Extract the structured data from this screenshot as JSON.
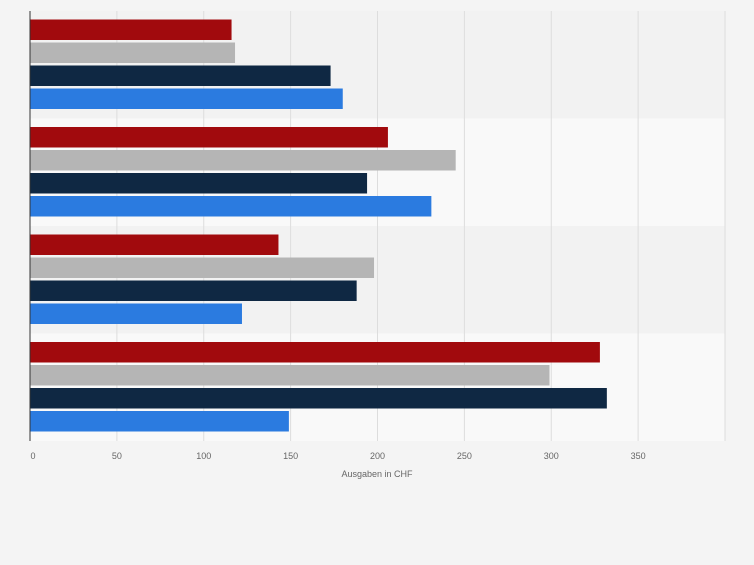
{
  "chart_data": {
    "type": "bar",
    "orientation": "horizontal",
    "xlabel": "Ausgaben in CHF",
    "xlim": [
      0,
      400
    ],
    "xticks": [
      0,
      50,
      100,
      150,
      200,
      250,
      300,
      350
    ],
    "grid": true,
    "legend": "none",
    "groups": 4,
    "series": [
      {
        "color": "#a10a0d",
        "values": [
          116,
          206,
          143,
          328
        ]
      },
      {
        "color": "#b5b5b5",
        "values": [
          118,
          245,
          198,
          299
        ]
      },
      {
        "color": "#0f2843",
        "values": [
          173,
          194,
          188,
          332
        ]
      },
      {
        "color": "#2b7be0",
        "values": [
          180,
          231,
          122,
          149
        ]
      }
    ]
  },
  "colors": {
    "band_dark": "#f2f2f2",
    "band_light": "#f9f9f9",
    "grid": "#dddddd",
    "axis": "#333333",
    "tick_text": "#666666"
  }
}
